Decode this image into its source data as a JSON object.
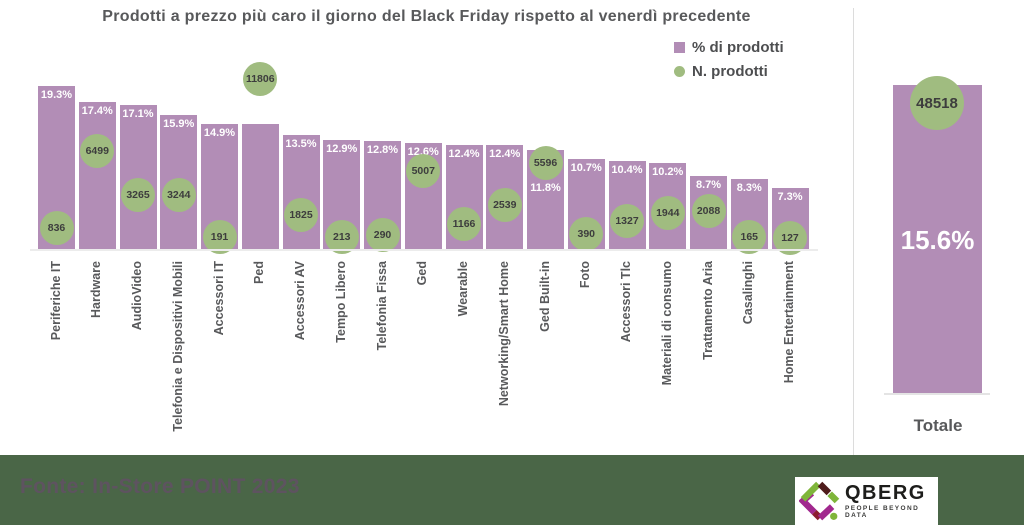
{
  "chart_data": {
    "type": "bar",
    "title": "Prodotti a prezzo più caro il giorno del Black Friday rispetto al venerdì precedente",
    "legend": [
      {
        "label": "% di prodotti",
        "marker": "square",
        "color": "#b28db6"
      },
      {
        "label": "N. prodotti",
        "marker": "circle",
        "color": "#a0bc80"
      }
    ],
    "categories": [
      "Periferiche IT",
      "Hardware",
      "AudioVideo",
      "Telefonia e Dispositivi Mobili",
      "Accessori IT",
      "Ped",
      "Accessori AV",
      "Tempo Libero",
      "Telefonia Fissa",
      "Ged",
      "Wearable",
      "Networking/Smart Home",
      "Ged Built-in",
      "Foto",
      "Accessori Tlc",
      "Materiali di consumo",
      "Trattamento Aria",
      "Casalinghi",
      "Home Entertainment"
    ],
    "series": [
      {
        "name": "% di prodotti",
        "unit": "%",
        "values": [
          19.3,
          17.4,
          17.1,
          15.9,
          14.9,
          14.8,
          13.5,
          12.9,
          12.8,
          12.6,
          12.4,
          12.4,
          11.8,
          10.7,
          10.4,
          10.2,
          8.7,
          8.3,
          7.3
        ]
      },
      {
        "name": "N. prodotti",
        "values": [
          836,
          6499,
          3265,
          3244,
          191,
          11806,
          1825,
          213,
          290,
          5007,
          1166,
          2539,
          5596,
          390,
          1327,
          1944,
          2088,
          165,
          127
        ]
      }
    ],
    "total": {
      "label": "Totale",
      "pct_label": "15.6%",
      "n_label": "48518"
    },
    "source": "Fonte: In-Store POINT 2023",
    "colors": {
      "bar": "#b28db6",
      "circle": "#a0bc80",
      "footer_bg": "#4a6647"
    },
    "ylim": [
      0,
      21
    ],
    "grid": false,
    "legend_position": "top-right"
  },
  "logo": {
    "brand": "QBERG",
    "tagline": "PEOPLE BEYOND DATA"
  }
}
